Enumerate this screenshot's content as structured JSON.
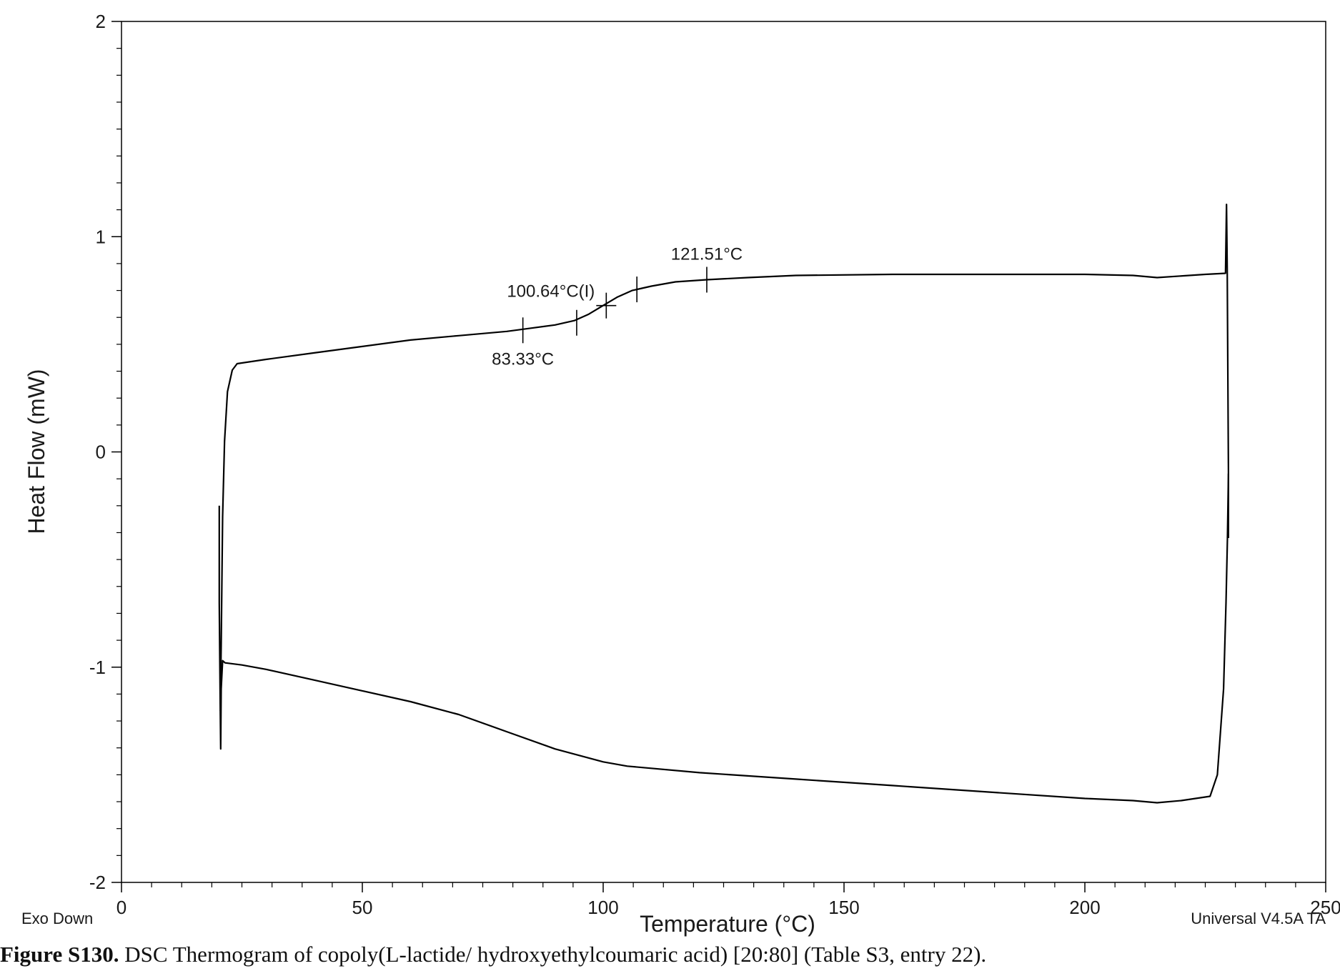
{
  "chart_data": {
    "type": "line",
    "title": "",
    "xlabel": "Temperature (°C)",
    "ylabel": "Heat Flow (mW)",
    "xlim": [
      0,
      250
    ],
    "ylim": [
      -2,
      2
    ],
    "x_ticks": [
      0,
      50,
      100,
      150,
      200,
      250
    ],
    "y_ticks": [
      -2,
      -1,
      0,
      1,
      2
    ],
    "grid": false,
    "legend": "none",
    "line_color": "#000000",
    "series": [
      {
        "x": [
          20.3,
          20.3,
          20.5,
          20.7,
          21.0,
          21.4,
          22.0,
          23.0,
          24.0,
          30,
          40,
          50,
          60,
          70,
          80,
          85,
          90,
          94,
          97,
          100,
          103,
          106,
          110,
          115,
          121.5,
          130,
          140,
          160,
          180,
          200,
          210,
          215,
          225,
          229.2,
          229.4,
          229.55,
          229.8,
          229.8
        ],
        "values": [
          -0.25,
          -0.7,
          -1.2,
          -0.9,
          -0.3,
          0.05,
          0.28,
          0.38,
          0.41,
          0.43,
          0.46,
          0.49,
          0.52,
          0.54,
          0.56,
          0.575,
          0.59,
          0.61,
          0.64,
          0.68,
          0.72,
          0.75,
          0.77,
          0.79,
          0.8,
          0.81,
          0.82,
          0.825,
          0.825,
          0.825,
          0.82,
          0.81,
          0.825,
          0.83,
          1.15,
          0.85,
          -0.1,
          -0.4
        ]
      },
      {
        "x": [
          229.8,
          229.6,
          229.3,
          228.8,
          227.5,
          226,
          220,
          215,
          210,
          200,
          180,
          160,
          140,
          120,
          105,
          100,
          90,
          80,
          70,
          60,
          50,
          40,
          30,
          25,
          21.5,
          21.0,
          20.7,
          20.6,
          20.5
        ],
        "values": [
          -0.1,
          -0.4,
          -0.7,
          -1.1,
          -1.5,
          -1.6,
          -1.62,
          -1.63,
          -1.62,
          -1.61,
          -1.58,
          -1.55,
          -1.52,
          -1.49,
          -1.46,
          -1.44,
          -1.38,
          -1.3,
          -1.22,
          -1.16,
          -1.11,
          -1.06,
          -1.01,
          -0.99,
          -0.98,
          -0.97,
          -1.1,
          -1.38,
          -1.2
        ]
      }
    ],
    "annotations": [
      {
        "text": "121.51°C",
        "x": 121.51,
        "y": 0.8
      },
      {
        "text": "100.64°C(I)",
        "x": 100.64,
        "y": 0.68
      },
      {
        "text": "83.33°C",
        "x": 83.33,
        "y": 0.565
      }
    ],
    "transition_markers": [
      {
        "x": 83.33,
        "y": 0.565
      },
      {
        "x": 94.5,
        "y": 0.6
      },
      {
        "x": 100.64,
        "y": 0.68
      },
      {
        "x": 107.0,
        "y": 0.755
      },
      {
        "x": 121.51,
        "y": 0.8
      }
    ]
  },
  "notes": {
    "exo_direction": "Exo Down",
    "software": "Universal V4.5A TA"
  },
  "caption": {
    "label": "Figure S130.",
    "text": " DSC Thermogram of copoly(L-lactide/ hydroxyethylcoumaric acid) [20:80] (Table S3, entry 22)."
  }
}
